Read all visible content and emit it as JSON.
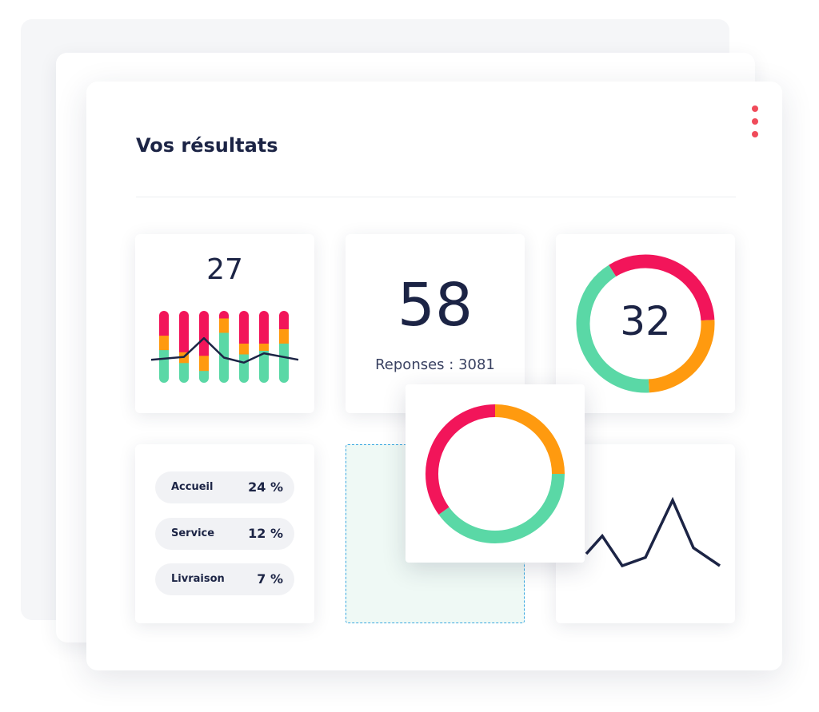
{
  "colors": {
    "red": "#f2155a",
    "orange": "#ff9a0f",
    "green": "#5ad8a6",
    "navy": "#1c2445",
    "kebab_dot": "#f04b5a"
  },
  "header": {
    "title": "Vos résultats",
    "menu_icon": "more-vertical-icon"
  },
  "tiles": {
    "bar_tile": {
      "value": "27",
      "chart_data": {
        "type": "bar",
        "stacked": true,
        "series": [
          {
            "color": "green",
            "values": [
              0.46,
              0.28,
              0.17,
              0.7,
              0.4,
              0.45,
              0.55
            ]
          },
          {
            "color": "orange",
            "values": [
              0.2,
              0.15,
              0.21,
              0.2,
              0.15,
              0.1,
              0.2
            ]
          },
          {
            "color": "red",
            "values": [
              0.34,
              0.57,
              0.62,
              0.1,
              0.45,
              0.45,
              0.25
            ]
          }
        ],
        "line": {
          "color": "navy",
          "values": [
            0.32,
            0.36,
            0.62,
            0.35,
            0.28,
            0.41,
            0.32
          ]
        }
      }
    },
    "number_tile": {
      "value": "58",
      "caption": "Reponses : 3081"
    },
    "donut_tile": {
      "value": "32",
      "chart_data": {
        "type": "pie",
        "donut": true,
        "slices": [
          {
            "color": "red",
            "fraction": 0.33
          },
          {
            "color": "orange",
            "fraction": 0.25
          },
          {
            "color": "green",
            "fraction": 0.42
          }
        ]
      }
    },
    "categories_tile": {
      "items": [
        {
          "label": "Accueil",
          "value": "24 %"
        },
        {
          "label": "Service",
          "value": "12 %"
        },
        {
          "label": "Livraison",
          "value": "7 %"
        }
      ]
    },
    "floating_donut": {
      "chart_data": {
        "type": "pie",
        "donut": true,
        "slices": [
          {
            "color": "orange",
            "fraction": 0.25
          },
          {
            "color": "green",
            "fraction": 0.4
          },
          {
            "color": "red",
            "fraction": 0.35
          }
        ]
      }
    },
    "line_tile": {
      "chart_data": {
        "type": "line",
        "color": "navy",
        "values": [
          0.55,
          0.7,
          0.45,
          0.52,
          1.0,
          0.6,
          0.45
        ]
      }
    }
  }
}
